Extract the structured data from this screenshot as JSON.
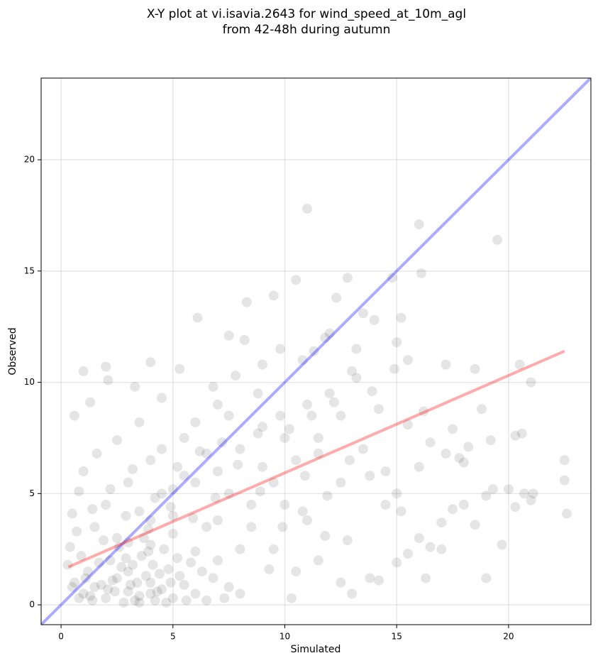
{
  "chart_data": {
    "type": "scatter",
    "title": [
      "X-Y plot at vi.isavia.2643 for wind_speed_at_10m_agl",
      "from 42-48h during autumn"
    ],
    "x_label": "Simulated",
    "y_label": "Observed",
    "xlim": [
      -0.89,
      23.68
    ],
    "ylim": [
      -0.89,
      23.67
    ],
    "xticks": [
      0,
      5,
      10,
      15,
      20
    ],
    "yticks": [
      0,
      5,
      10,
      15,
      20
    ],
    "grid": true,
    "color": "#000000",
    "opacity": 0.1,
    "x": [
      1,
      1.5,
      2,
      2.5,
      3,
      3.5,
      4,
      4.5,
      5,
      1.2,
      2.2,
      3.2,
      3.8,
      4.2,
      2.8,
      1.8,
      0.8,
      3.6,
      4.8,
      5.5,
      6,
      6.5,
      5.2,
      2.4,
      3.4,
      4.4,
      1.4,
      0.5,
      3,
      4,
      4.6,
      5.8,
      6.8,
      7.5,
      8,
      7,
      1.1,
      2.6,
      3.7,
      5,
      2,
      3,
      4,
      5,
      6,
      7,
      8,
      9,
      10,
      11,
      12,
      13,
      6.5,
      8.5,
      9.5,
      10.5,
      11.5,
      12.5,
      13.5,
      14.5,
      15,
      7.5,
      8.8,
      9.8,
      10.8,
      11.8,
      12.3,
      12.8,
      13.2,
      14,
      10.5,
      9.5,
      8.3,
      7.5,
      6.1,
      5.3,
      4.5,
      3.3,
      2,
      1,
      2.1,
      0.6,
      1.3,
      4,
      6,
      7,
      5.5,
      4.5,
      3.5,
      2.5,
      1.6,
      1,
      0.8,
      0.5,
      0.4,
      1.5,
      2.5,
      3.5,
      4.5,
      5.5,
      6.5,
      7.5,
      8.5,
      9.5,
      10.5,
      11.5,
      12.5,
      13,
      12.8,
      11,
      10,
      9,
      8,
      7,
      6,
      5,
      4,
      3,
      10.2,
      11.2,
      12.2,
      13.2,
      14.2,
      15.2,
      15,
      15.5,
      15.5,
      16.2,
      16.5,
      16,
      15.2,
      15.5,
      16,
      16.5,
      17,
      16.3,
      14.2,
      15,
      17,
      17.5,
      18,
      18.5,
      19,
      19.3,
      20,
      20.3,
      20.7,
      21,
      21.1,
      22.5,
      22.5,
      22.6,
      20.3,
      20.6,
      20.5,
      21,
      19.2,
      18.8,
      18.5,
      17.2,
      17.5,
      18.2,
      17.8,
      18,
      17.2,
      19.7,
      19,
      16,
      16.1,
      19.5,
      11,
      14.8,
      13.5,
      12,
      11.3,
      9,
      8.2,
      7.8,
      6.8,
      9.3,
      10.3,
      11.8,
      13.8,
      14.5,
      13.8,
      12.5,
      11.5,
      10.8,
      9.8,
      8.8,
      7.2,
      6.2,
      5.2,
      4.2,
      3.2,
      2.2,
      1.4,
      0.7,
      0.3,
      0.9,
      1.9,
      2.9,
      3.9,
      4.9,
      5.9,
      6.9,
      7.9,
      8.9,
      9.9,
      10.9,
      11.9,
      12.9,
      13.9,
      14.9,
      1.3,
      2.3,
      3.3,
      4.3,
      5.3,
      2.7,
      3.9,
      4.7,
      1.7,
      3.1,
      4.1,
      5.6,
      2.1,
      3.5,
      4.9,
      6.3,
      7.3,
      0.6,
      2.9,
      4.0
    ],
    "values": [
      0.5,
      0.8,
      0.3,
      1.2,
      0.6,
      0.4,
      1.0,
      0.7,
      0.3,
      1.5,
      2.0,
      1.8,
      1.3,
      0.2,
      0.1,
      0.9,
      0.3,
      2.2,
      1.6,
      0.9,
      0.5,
      0.2,
      2.1,
      0.6,
      1.0,
      1.4,
      0.2,
      0.8,
      1.5,
      0.5,
      2.5,
      1.9,
      1.2,
      0.8,
      0.5,
      2.0,
      1.2,
      2.6,
      3.0,
      3.2,
      4.5,
      5.5,
      6.5,
      4.0,
      5.5,
      6.0,
      7.0,
      8.0,
      7.5,
      9.0,
      9.5,
      10.5,
      3.5,
      4.5,
      5.5,
      6.5,
      7.5,
      8.5,
      7.0,
      6.0,
      5.0,
      8.5,
      9.5,
      11.5,
      11.0,
      12.0,
      13.8,
      14.7,
      11.5,
      12.8,
      14.6,
      13.9,
      13.6,
      12.1,
      12.9,
      10.6,
      9.3,
      9.8,
      10.7,
      10.5,
      10.1,
      8.5,
      9.1,
      10.9,
      8.2,
      9.0,
      7.5,
      7.0,
      8.2,
      7.4,
      6.8,
      6.0,
      5.1,
      4.1,
      2.6,
      3.5,
      3.0,
      4.2,
      5.0,
      5.8,
      6.8,
      5.0,
      3.5,
      2.5,
      1.5,
      2.0,
      1.0,
      0.5,
      2.9,
      3.8,
      4.5,
      6.2,
      2.5,
      3.8,
      2.4,
      5.2,
      3.8,
      2.8,
      7.9,
      8.5,
      9.1,
      10.2,
      8.8,
      12.9,
      11.8,
      11.0,
      8.1,
      8.7,
      7.3,
      6.2,
      4.2,
      2.3,
      3.0,
      2.6,
      2.5,
      1.2,
      1.1,
      1.9,
      3.7,
      4.3,
      4.5,
      3.6,
      4.9,
      5.2,
      5.2,
      4.4,
      5.0,
      4.7,
      5.0,
      6.5,
      5.6,
      4.1,
      7.6,
      7.7,
      10.8,
      10.0,
      7.4,
      8.8,
      10.6,
      10.8,
      7.9,
      7.1,
      6.6,
      6.4,
      6.8,
      2.7,
      1.2,
      17.1,
      14.9,
      16.4,
      17.8,
      14.7,
      13.1,
      12.2,
      11.4,
      10.8,
      11.9,
      10.3,
      9.8,
      1.6,
      0.3,
      3.1,
      1.2,
      4.5,
      5.8,
      5.5,
      6.8,
      4.2,
      8.5,
      7.7,
      7.3,
      6.9,
      6.2,
      4.8,
      6.1,
      5.2,
      4.3,
      3.3,
      1.8,
      2.2,
      2.9,
      4.0,
      3.4,
      4.4,
      3.9,
      4.8,
      6.3,
      5.1,
      3.5,
      5.8,
      4.9,
      6.5,
      9.6,
      10.6,
      0.4,
      1.1,
      0.2,
      0.6,
      1.3,
      1.7,
      2.4,
      0.1,
      1.9,
      0.9,
      1.8,
      0.2,
      0.7,
      0.1,
      1.0,
      1.5,
      0.3,
      1.0,
      2.1,
      2.7
    ],
    "lines": [
      {
        "color": "#0000ff",
        "x": [
          -0.89,
          23.68
        ],
        "values": [
          -0.89,
          23.68
        ]
      },
      {
        "color": "#ff0000",
        "x": [
          0.33,
          22.5
        ],
        "values": [
          1.7,
          11.4
        ]
      }
    ]
  }
}
